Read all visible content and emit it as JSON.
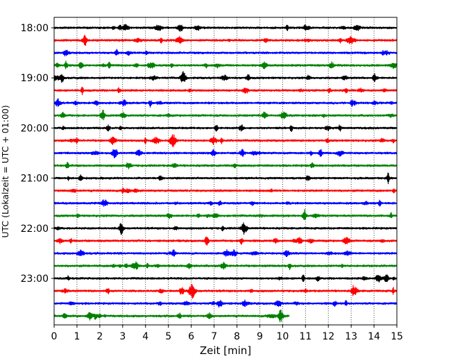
{
  "chart_data": {
    "type": "line",
    "xlabel": "Zeit  [min]",
    "ylabel": "UTC (Lokalzeit = UTC + 01:00)",
    "xlim": [
      0,
      15
    ],
    "x_ticks": [
      "0",
      "1",
      "2",
      "3",
      "4",
      "5",
      "6",
      "7",
      "8",
      "9",
      "10",
      "11",
      "12",
      "13",
      "14",
      "15"
    ],
    "y_ticks": [
      "18:00",
      "19:00",
      "20:00",
      "21:00",
      "22:00",
      "23:00"
    ],
    "grid": "vertical dotted lines at each minute",
    "row_interval_minutes": 15,
    "colors": [
      "#000000",
      "#ff0000",
      "#0000ff",
      "#008000"
    ],
    "traces": [
      {
        "start": "18:00",
        "color": "#000000",
        "end_min": 15
      },
      {
        "start": "18:15",
        "color": "#ff0000",
        "end_min": 15
      },
      {
        "start": "18:30",
        "color": "#0000ff",
        "end_min": 15
      },
      {
        "start": "18:45",
        "color": "#008000",
        "end_min": 15
      },
      {
        "start": "19:00",
        "color": "#000000",
        "end_min": 15
      },
      {
        "start": "19:15",
        "color": "#ff0000",
        "end_min": 15
      },
      {
        "start": "19:30",
        "color": "#0000ff",
        "end_min": 15
      },
      {
        "start": "19:45",
        "color": "#008000",
        "end_min": 15
      },
      {
        "start": "20:00",
        "color": "#000000",
        "end_min": 15
      },
      {
        "start": "20:15",
        "color": "#ff0000",
        "end_min": 15
      },
      {
        "start": "20:30",
        "color": "#0000ff",
        "end_min": 15
      },
      {
        "start": "20:45",
        "color": "#008000",
        "end_min": 15
      },
      {
        "start": "21:00",
        "color": "#000000",
        "end_min": 15
      },
      {
        "start": "21:15",
        "color": "#ff0000",
        "end_min": 15
      },
      {
        "start": "21:30",
        "color": "#0000ff",
        "end_min": 15
      },
      {
        "start": "21:45",
        "color": "#008000",
        "end_min": 15
      },
      {
        "start": "22:00",
        "color": "#000000",
        "end_min": 15
      },
      {
        "start": "22:15",
        "color": "#ff0000",
        "end_min": 15
      },
      {
        "start": "22:30",
        "color": "#0000ff",
        "end_min": 15
      },
      {
        "start": "22:45",
        "color": "#008000",
        "end_min": 15
      },
      {
        "start": "23:00",
        "color": "#000000",
        "end_min": 15
      },
      {
        "start": "23:15",
        "color": "#ff0000",
        "end_min": 15
      },
      {
        "start": "23:30",
        "color": "#0000ff",
        "end_min": 15
      },
      {
        "start": "23:45",
        "color": "#008000",
        "end_min": 10.3
      }
    ]
  }
}
